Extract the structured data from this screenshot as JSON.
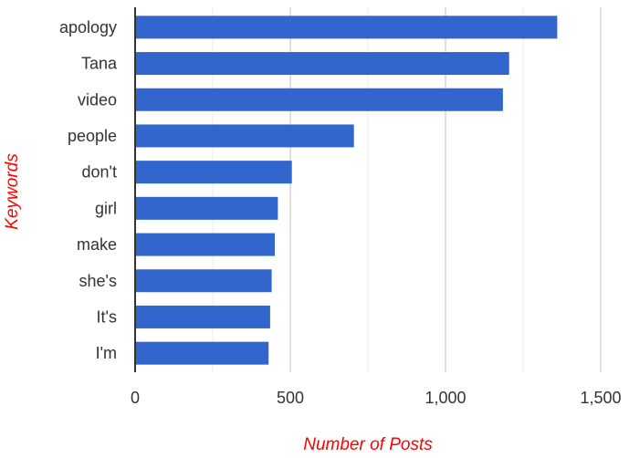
{
  "chart_data": {
    "type": "bar",
    "orientation": "horizontal",
    "categories": [
      "apology",
      "Tana",
      "video",
      "people",
      "don't",
      "girl",
      "make",
      "she's",
      "It's",
      "I'm"
    ],
    "values": [
      1360,
      1205,
      1185,
      705,
      505,
      460,
      450,
      440,
      435,
      430
    ],
    "xlabel": "Number of Posts",
    "ylabel": "Keywords",
    "xlim": [
      0,
      1500
    ],
    "x_ticks": [
      "0",
      "500",
      "1,000",
      "1,500"
    ],
    "x_tick_values": [
      0,
      500,
      1000,
      1500
    ],
    "minor_grid_values": [
      250,
      750,
      1250
    ],
    "grid": true,
    "legend": "none",
    "colors": {
      "bar": "#3366cc",
      "axis_title": "#ff0000",
      "grid": "#cccccc",
      "minor_grid": "#ebebeb",
      "axis": "#333333"
    }
  }
}
